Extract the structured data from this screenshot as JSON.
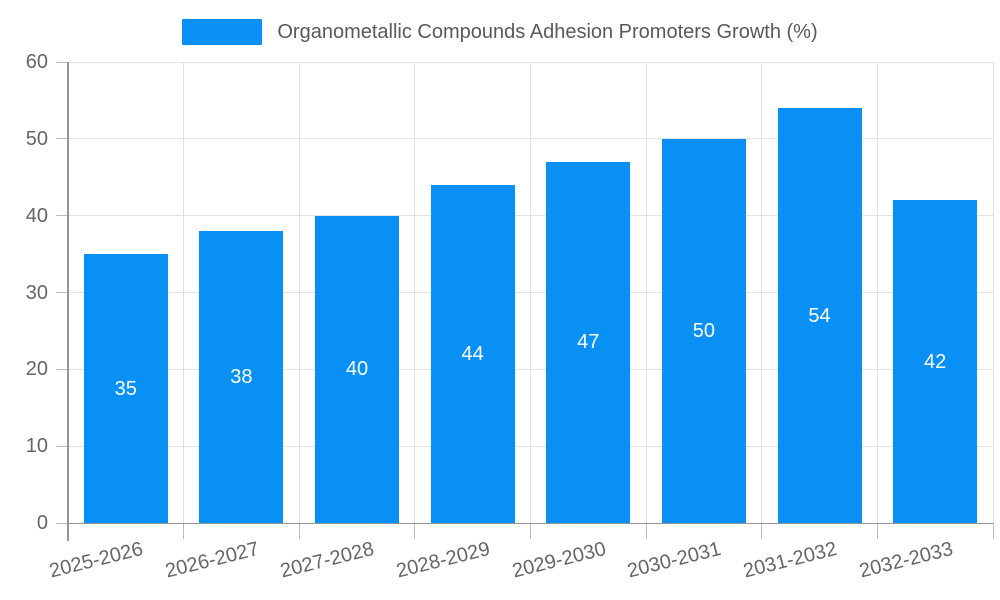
{
  "legend": {
    "label": "Organometallic Compounds Adhesion Promoters Growth (%)"
  },
  "chart_data": {
    "type": "bar",
    "title": "Organometallic Compounds Adhesion Promoters Growth (%)",
    "categories": [
      "2025-2026",
      "2026-2027",
      "2027-2028",
      "2028-2029",
      "2029-2030",
      "2030-2031",
      "2031-2032",
      "2032-2033"
    ],
    "values": [
      35,
      38,
      40,
      44,
      47,
      50,
      54,
      42
    ],
    "xlabel": "",
    "ylabel": "",
    "ylim": [
      0,
      60
    ],
    "yticks": [
      0,
      10,
      20,
      30,
      40,
      50,
      60
    ],
    "grid": true,
    "legend_position": "top-center",
    "value_label_position": "inside-center",
    "colors": {
      "bar": "#0990f5",
      "value_label": "#ffffff",
      "grid": "#e2e2e2",
      "axis": "#949494",
      "tick": "#bbbbbb",
      "tick_label": "#666666",
      "legend_text": "#595959",
      "background": "#ffffff"
    }
  }
}
